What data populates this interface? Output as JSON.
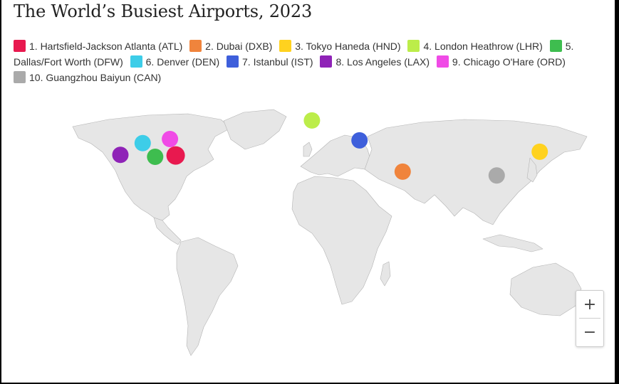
{
  "title": "The World’s Busiest Airports, 2023",
  "airports": [
    {
      "label": "1. Hartsfield-Jackson Atlanta (ATL)",
      "color": "#e8194f",
      "lon": -84.4,
      "lat": 33.6
    },
    {
      "label": "2. Dubai (DXB)",
      "color": "#f0843c",
      "lon": 55.4,
      "lat": 25.3
    },
    {
      "label": "3. Tokyo Haneda (HND)",
      "color": "#ffd21f",
      "lon": 139.8,
      "lat": 35.5
    },
    {
      "label": "4. London Heathrow (LHR)",
      "color": "#bced4a",
      "lon": -0.5,
      "lat": 51.5
    },
    {
      "label": "5. Dallas/Fort Worth (DFW)",
      "color": "#3ebd4f",
      "lon": -97.0,
      "lat": 32.9
    },
    {
      "label": "6. Denver (DEN)",
      "color": "#3dcde8",
      "lon": -104.7,
      "lat": 39.9
    },
    {
      "label": "7. Istanbul (IST)",
      "color": "#3e5fdb",
      "lon": 28.8,
      "lat": 41.3
    },
    {
      "label": "8. Los Angeles (LAX)",
      "color": "#8f23b7",
      "lon": -118.4,
      "lat": 33.9
    },
    {
      "label": "9. Chicago O'Hare (ORD)",
      "color": "#f04be6",
      "lon": -87.9,
      "lat": 42.0
    },
    {
      "label": "10. Guangzhou Baiyun (CAN)",
      "color": "#aaaaaa",
      "lon": 113.3,
      "lat": 23.4
    }
  ],
  "zoom": {
    "in": "+",
    "out": "−"
  }
}
